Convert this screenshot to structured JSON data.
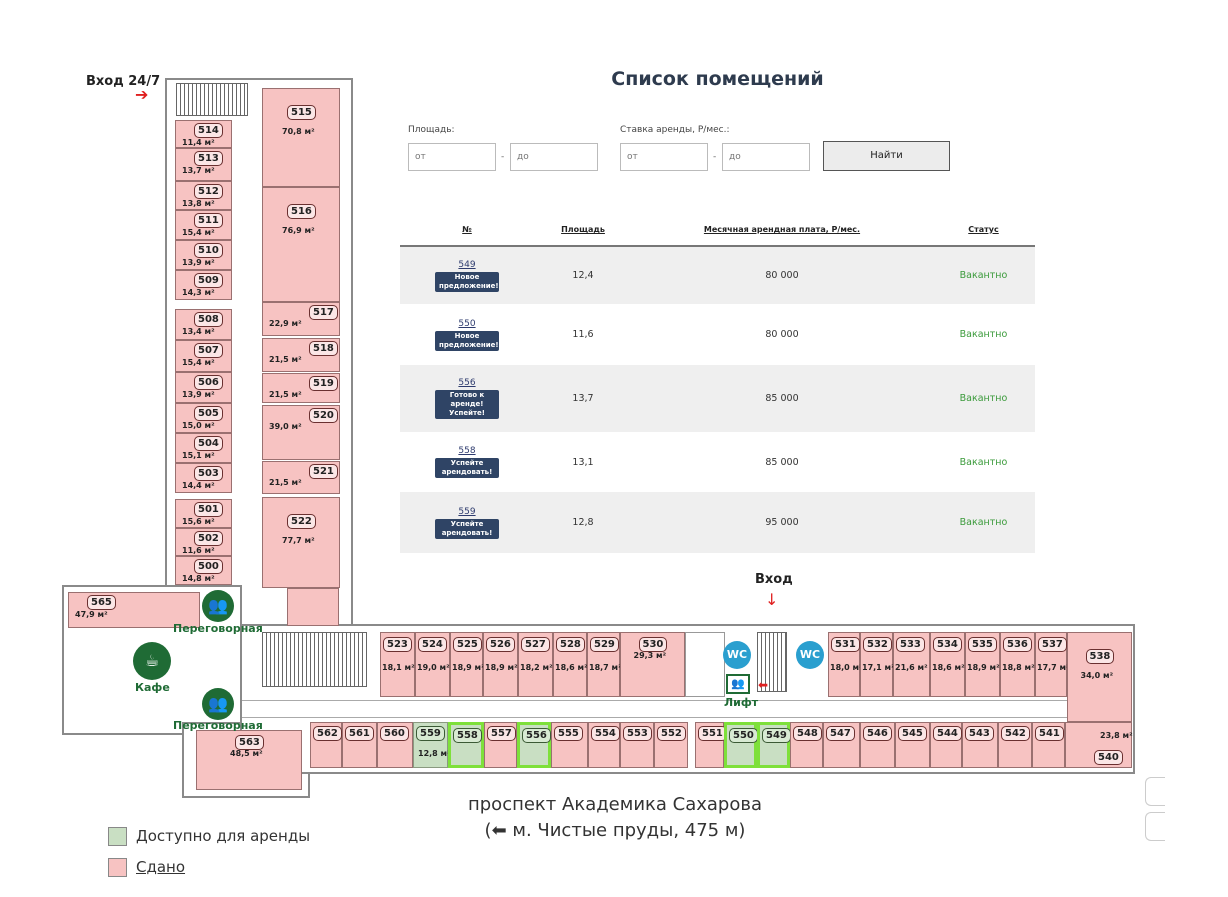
{
  "title": "Список помещений",
  "filters": {
    "area_label": "Площадь:",
    "rate_label": "Ставка аренды, Р/мес.:",
    "from_placeholder": "от",
    "to_placeholder": "до",
    "separator": "-",
    "search_button": "Найти"
  },
  "table": {
    "headers": [
      "№",
      "Площадь",
      "Месячная арендная плата, Р/мес.",
      "Статус"
    ],
    "rows": [
      {
        "number": "549",
        "badge": "Новое предложение!",
        "area": "12,4",
        "rent": "80 000",
        "status": "Вакантно"
      },
      {
        "number": "550",
        "badge": "Новое предложение!",
        "area": "11,6",
        "rent": "80 000",
        "status": "Вакантно"
      },
      {
        "number": "556",
        "badge": "Готово к аренде! Успейте!",
        "area": "13,7",
        "rent": "85 000",
        "status": "Вакантно"
      },
      {
        "number": "558",
        "badge": "Успейте арендовать!",
        "area": "13,1",
        "rent": "85 000",
        "status": "Вакантно"
      },
      {
        "number": "559",
        "badge": "Успейте арендовать!",
        "area": "12,8",
        "rent": "95 000",
        "status": "Вакантно"
      }
    ]
  },
  "plan": {
    "entrance_24_7": "Вход 24/7",
    "entrance": "Вход",
    "wc": "WC",
    "lift": "Лифт",
    "meeting_room": "Переговорная",
    "cafe": "Кафе",
    "street_line1": "проспект Академика Сахарова",
    "street_line2": "(⬅ м. Чистые пруды, 475 м)",
    "colors": {
      "rented": "#f7c3c2",
      "available": "#c9dfc3",
      "highlight": "#7ee03a",
      "icon_green": "#1f6b35",
      "wc_blue": "#2a9fcf"
    },
    "rooms": [
      {
        "n": "514",
        "a": "11,4 м²",
        "s": "rented"
      },
      {
        "n": "513",
        "a": "13,7 м²",
        "s": "rented"
      },
      {
        "n": "512",
        "a": "13,8 м²",
        "s": "rented"
      },
      {
        "n": "511",
        "a": "15,4 м²",
        "s": "rented"
      },
      {
        "n": "510",
        "a": "13,9 м²",
        "s": "rented"
      },
      {
        "n": "509",
        "a": "14,3 м²",
        "s": "rented"
      },
      {
        "n": "508",
        "a": "13,4 м²",
        "s": "rented"
      },
      {
        "n": "507",
        "a": "15,4 м²",
        "s": "rented"
      },
      {
        "n": "506",
        "a": "13,9 м²",
        "s": "rented"
      },
      {
        "n": "505",
        "a": "15,0 м²",
        "s": "rented"
      },
      {
        "n": "504",
        "a": "15,1 м²",
        "s": "rented"
      },
      {
        "n": "503",
        "a": "14,4 м²",
        "s": "rented"
      },
      {
        "n": "501",
        "a": "15,6 м²",
        "s": "rented"
      },
      {
        "n": "502",
        "a": "11,6 м²",
        "s": "rented"
      },
      {
        "n": "500",
        "a": "14,8 м²",
        "s": "rented"
      },
      {
        "n": "515",
        "a": "70,8 м²",
        "s": "rented"
      },
      {
        "n": "516",
        "a": "76,9 м²",
        "s": "rented"
      },
      {
        "n": "517",
        "a": "22,9 м²",
        "s": "rented"
      },
      {
        "n": "518",
        "a": "21,5 м²",
        "s": "rented"
      },
      {
        "n": "519",
        "a": "21,5 м²",
        "s": "rented"
      },
      {
        "n": "520",
        "a": "39,0 м²",
        "s": "rented"
      },
      {
        "n": "521",
        "a": "21,5 м²",
        "s": "rented"
      },
      {
        "n": "522",
        "a": "77,7 м²",
        "s": "rented"
      },
      {
        "n": "565",
        "a": "47,9 м²",
        "s": "rented"
      },
      {
        "n": "563",
        "a": "48,5 м²",
        "s": "rented"
      },
      {
        "n": "523",
        "a": "18,1 м²",
        "s": "rented"
      },
      {
        "n": "524",
        "a": "19,0 м²",
        "s": "rented"
      },
      {
        "n": "525",
        "a": "18,9 м²",
        "s": "rented"
      },
      {
        "n": "526",
        "a": "18,9 м²",
        "s": "rented"
      },
      {
        "n": "527",
        "a": "18,2 м²",
        "s": "rented"
      },
      {
        "n": "528",
        "a": "18,6 м²",
        "s": "rented"
      },
      {
        "n": "529",
        "a": "18,7 м²",
        "s": "rented"
      },
      {
        "n": "530",
        "a": "29,3 м²",
        "s": "rented"
      },
      {
        "n": "531",
        "a": "18,0 м²",
        "s": "rented"
      },
      {
        "n": "532",
        "a": "17,1 м²",
        "s": "rented"
      },
      {
        "n": "533",
        "a": "21,6 м²",
        "s": "rented"
      },
      {
        "n": "534",
        "a": "18,6 м²",
        "s": "rented"
      },
      {
        "n": "535",
        "a": "18,9 м²",
        "s": "rented"
      },
      {
        "n": "536",
        "a": "18,8 м²",
        "s": "rented"
      },
      {
        "n": "537",
        "a": "17,7 м²",
        "s": "rented"
      },
      {
        "n": "538",
        "a": "34,0 м²",
        "s": "rented"
      },
      {
        "n": "562",
        "a": "",
        "s": "rented"
      },
      {
        "n": "561",
        "a": "",
        "s": "rented"
      },
      {
        "n": "560",
        "a": "",
        "s": "rented"
      },
      {
        "n": "559",
        "a": "12,8 м²",
        "s": "available"
      },
      {
        "n": "558",
        "a": "",
        "s": "available",
        "hl": true
      },
      {
        "n": "557",
        "a": "",
        "s": "rented"
      },
      {
        "n": "556",
        "a": "",
        "s": "available",
        "hl": true
      },
      {
        "n": "555",
        "a": "",
        "s": "rented"
      },
      {
        "n": "554",
        "a": "",
        "s": "rented"
      },
      {
        "n": "553",
        "a": "",
        "s": "rented"
      },
      {
        "n": "552",
        "a": "",
        "s": "rented"
      },
      {
        "n": "551",
        "a": "",
        "s": "rented"
      },
      {
        "n": "550",
        "a": "",
        "s": "available",
        "hl": true
      },
      {
        "n": "549",
        "a": "",
        "s": "available",
        "hl": true
      },
      {
        "n": "548",
        "a": "",
        "s": "rented"
      },
      {
        "n": "547",
        "a": "",
        "s": "rented"
      },
      {
        "n": "546",
        "a": "",
        "s": "rented"
      },
      {
        "n": "545",
        "a": "",
        "s": "rented"
      },
      {
        "n": "544",
        "a": "",
        "s": "rented"
      },
      {
        "n": "543",
        "a": "",
        "s": "rented"
      },
      {
        "n": "542",
        "a": "",
        "s": "rented"
      },
      {
        "n": "541",
        "a": "",
        "s": "rented"
      },
      {
        "n": "540",
        "a": "23,8 м²",
        "s": "rented"
      }
    ]
  },
  "legend": {
    "available": "Доступно для аренды",
    "rented": "Сдано"
  }
}
